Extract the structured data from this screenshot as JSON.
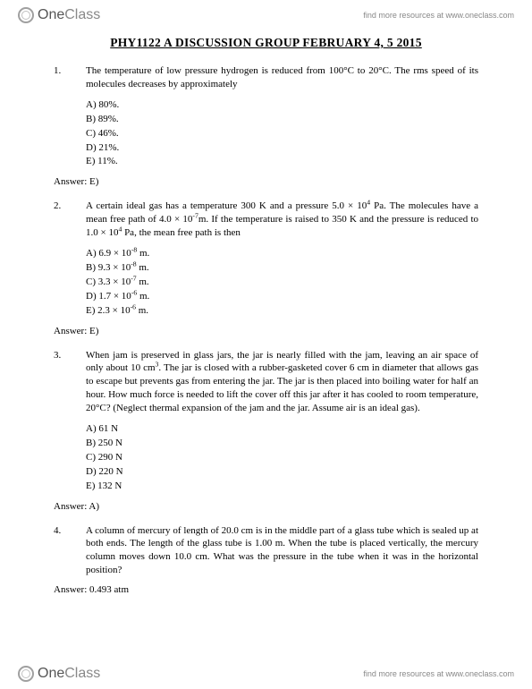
{
  "brand": {
    "logo_part_a": "One",
    "logo_part_b": "Class",
    "tagline": "find more resources at www.oneclass.com"
  },
  "document": {
    "title": "PHY1122 A  DISCUSSION GROUP  FEBRUARY 4, 5 2015",
    "questions": [
      {
        "number": "1.",
        "text_html": "The temperature of low pressure hydrogen is reduced from 100°C to 20°C. The rms speed of its molecules decreases by approximately",
        "choices": [
          "A) 80%.",
          "B) 89%.",
          "C) 46%.",
          "D) 21%.",
          "E) 11%."
        ],
        "answer": "Answer: E)"
      },
      {
        "number": "2.",
        "text_html": "A certain ideal gas has a temperature 300 K and a pressure 5.0 × 10<sup>4</sup> Pa. The molecules have a mean free path of 4.0 × 10<sup>-7</sup>m. If the temperature is raised to 350 K and the pressure is reduced to 1.0 × 10<sup>4</sup> Pa, the mean free path is then",
        "choices": [
          "A) 6.9 × 10<sup>-8</sup> m.",
          "B) 9.3 × 10<sup>-8</sup> m.",
          "C) 3.3 × 10<sup>-7</sup> m.",
          "D) 1.7 × 10<sup>-6</sup> m.",
          "E) 2.3 × 10<sup>-6</sup> m."
        ],
        "answer": "Answer: E)"
      },
      {
        "number": "3.",
        "text_html": "When jam is preserved in glass jars, the jar is nearly filled with the jam, leaving an air space of only about 10 cm<sup>3</sup>. The jar is closed with a rubber-gasketed cover 6 cm in diameter that allows gas to escape but prevents gas from entering the jar. The jar is then placed into boiling water for half an hour. How much force is needed to lift the cover off this jar after it has cooled to room temperature, 20°C? (Neglect thermal expansion of the jam and the jar. Assume air is an ideal gas).",
        "choices": [
          "A) 61 N",
          "B) 250 N",
          "C) 290 N",
          "D) 220 N",
          "E) 132 N"
        ],
        "answer": "Answer: A)"
      },
      {
        "number": "4.",
        "text_html": "A column of mercury of length of 20.0 cm is in the middle part of a glass tube which is sealed up at both ends. The length of the glass tube is 1.00 m. When the tube is placed vertically, the mercury column moves down 10.0 cm. What was the pressure in the tube when it was in the horizontal position?",
        "choices": [],
        "answer": "Answer: 0.493 atm"
      }
    ]
  }
}
